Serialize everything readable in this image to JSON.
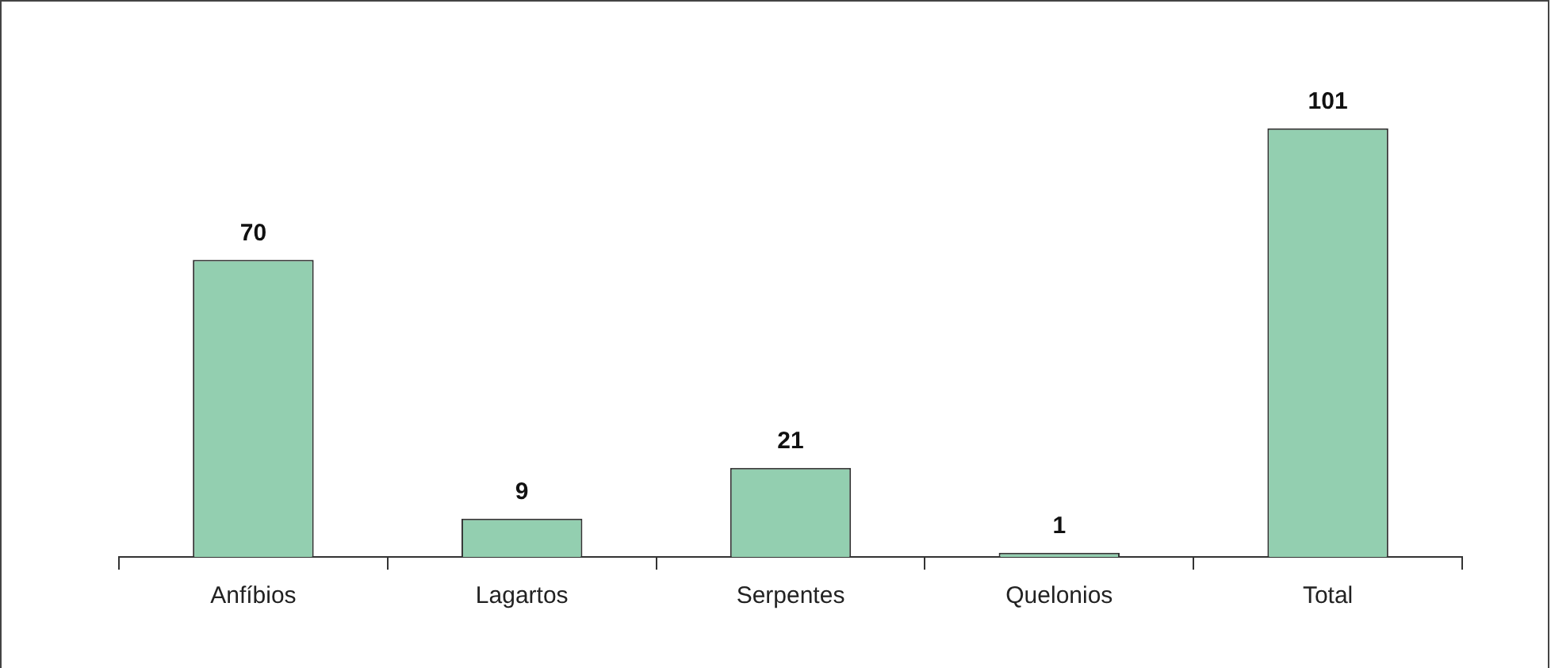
{
  "chart_data": {
    "type": "bar",
    "categories": [
      "Anfíbios",
      "Lagartos",
      "Serpentes",
      "Quelonios",
      "Total"
    ],
    "values": [
      70,
      9,
      21,
      1,
      101
    ],
    "color": "#93cfb0",
    "data_labels": true,
    "grid": false,
    "legend": false,
    "tick_labels": "x"
  }
}
